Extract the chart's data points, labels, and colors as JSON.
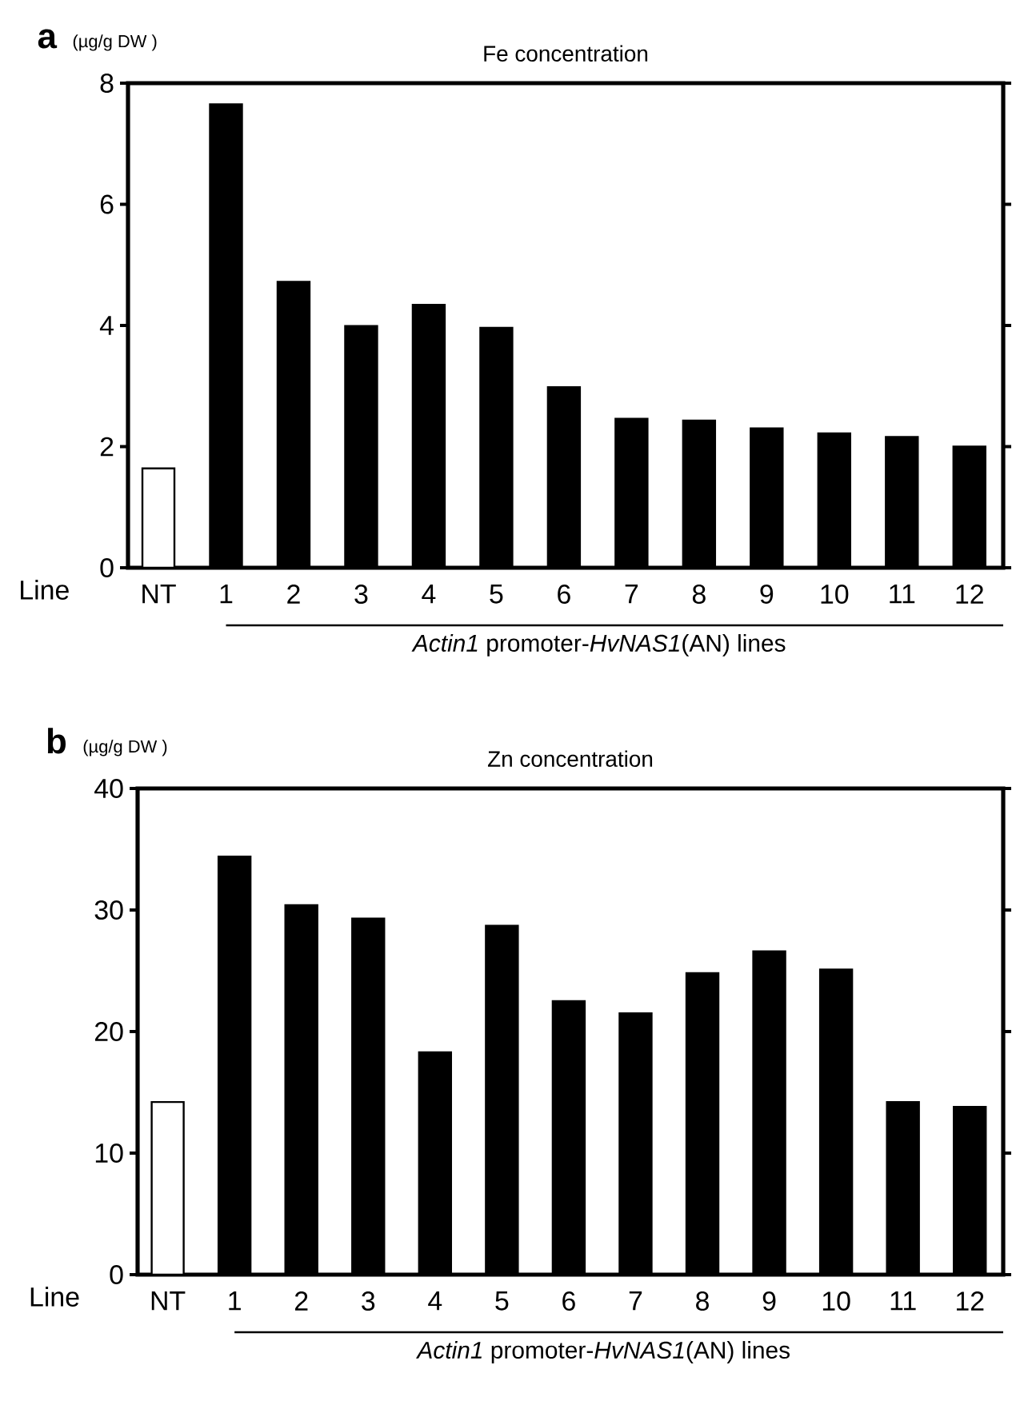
{
  "chart_data": [
    {
      "type": "bar",
      "title": "Fe concentration",
      "ylabel": "(µg/g DW )",
      "xlabel": "*Actin1* promoter-*HvNAS1*(AN) lines",
      "categories": [
        "NT",
        "1",
        "2",
        "3",
        "4",
        "5",
        "6",
        "7",
        "8",
        "9",
        "10",
        "11",
        "12"
      ],
      "values": [
        1.64,
        7.65,
        4.72,
        3.99,
        4.34,
        3.96,
        2.98,
        2.46,
        2.43,
        2.3,
        2.22,
        2.16,
        2.0
      ],
      "colors": [
        "#ffffff",
        "#000000",
        "#000000",
        "#000000",
        "#000000",
        "#000000",
        "#000000",
        "#000000",
        "#000000",
        "#000000",
        "#000000",
        "#000000",
        "#000000"
      ],
      "ylim": [
        0,
        8
      ],
      "yticks": [
        0,
        2,
        4,
        6,
        8
      ],
      "annotations": [
        "a",
        "Line"
      ]
    },
    {
      "type": "bar",
      "title": "Zn concentration",
      "ylabel": "(µg/g DW )",
      "xlabel": "*Actin1* promoter-*HvNAS1*(AN) lines",
      "categories": [
        "NT",
        "1",
        "2",
        "3",
        "4",
        "5",
        "6",
        "7",
        "8",
        "9",
        "10",
        "11",
        "12"
      ],
      "values": [
        14.2,
        34.4,
        30.4,
        29.3,
        18.3,
        28.7,
        22.5,
        21.5,
        24.8,
        26.6,
        25.1,
        14.2,
        13.8
      ],
      "colors": [
        "#ffffff",
        "#000000",
        "#000000",
        "#000000",
        "#000000",
        "#000000",
        "#000000",
        "#000000",
        "#000000",
        "#000000",
        "#000000",
        "#000000",
        "#000000"
      ],
      "ylim": [
        0,
        40
      ],
      "yticks": [
        0,
        10,
        20,
        30,
        40
      ],
      "annotations": [
        "b",
        "Line"
      ]
    }
  ]
}
